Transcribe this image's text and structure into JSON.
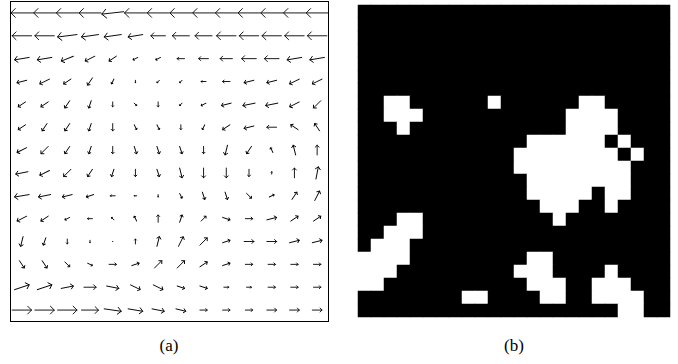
{
  "chart_data": [
    {
      "type": "vector",
      "caption": "(a)",
      "tick_labels": false,
      "color": "#000000",
      "xlim": [
        0,
        14
      ],
      "ylim": [
        14,
        0
      ],
      "x": [
        0.5,
        1.5,
        2.5,
        3.5,
        4.5,
        5.5,
        6.5,
        7.5,
        8.5,
        9.5,
        10.5,
        11.5,
        12.5,
        13.5
      ],
      "y": [
        0.5,
        1.5,
        2.5,
        3.5,
        4.5,
        5.5,
        6.5,
        7.5,
        8.5,
        9.5,
        10.5,
        11.5,
        12.5,
        13.5
      ],
      "u": [
        [
          -9,
          -9,
          -9,
          -9,
          -9,
          -9,
          -9,
          -9,
          -9,
          -9,
          -9,
          -9,
          -9,
          -9
        ],
        [
          -8,
          -8,
          -8,
          -7,
          -7,
          -6,
          -6,
          -7,
          -7,
          -8,
          -8,
          -8,
          -8,
          -8
        ],
        [
          -6,
          -6,
          -5,
          -4,
          -3,
          -2,
          -2,
          -3,
          -4,
          -5,
          -6,
          -6,
          -6,
          -6
        ],
        [
          -4,
          -4,
          -3,
          -2,
          -1,
          0,
          -1,
          -1,
          -2,
          -3,
          -4,
          -4,
          -4,
          -4
        ],
        [
          -3,
          -3,
          -2,
          -1,
          0,
          1,
          0,
          -1,
          -2,
          -4,
          -5,
          -5,
          -4,
          -3
        ],
        [
          -3,
          -2,
          -2,
          -1,
          0,
          1,
          1,
          0,
          -1,
          -3,
          -4,
          -4,
          -3,
          -2
        ],
        [
          -4,
          -3,
          -2,
          -1,
          0,
          1,
          1,
          1,
          0,
          -1,
          -2,
          -1,
          -1,
          0
        ],
        [
          -5,
          -4,
          -3,
          -2,
          -1,
          0,
          1,
          1,
          0,
          0,
          0,
          0,
          0,
          1
        ],
        [
          -6,
          -5,
          -4,
          -3,
          -2,
          -1,
          0,
          1,
          1,
          1,
          2,
          2,
          2,
          2
        ],
        [
          -4,
          -3,
          -2,
          -2,
          -1,
          -1,
          0,
          1,
          2,
          3,
          3,
          4,
          3,
          3
        ],
        [
          -1,
          -1,
          0,
          0,
          0,
          0,
          1,
          2,
          3,
          3,
          4,
          4,
          4,
          4
        ],
        [
          2,
          2,
          2,
          2,
          3,
          3,
          3,
          3,
          3,
          3,
          3,
          3,
          3,
          3
        ],
        [
          6,
          6,
          5,
          5,
          5,
          4,
          4,
          3,
          3,
          2,
          2,
          3,
          3,
          3
        ],
        [
          8,
          8,
          8,
          7,
          7,
          6,
          5,
          4,
          3,
          3,
          3,
          4,
          4,
          4
        ]
      ],
      "v": [
        [
          0,
          0,
          0,
          0,
          1,
          0,
          0,
          0,
          0,
          0,
          0,
          0,
          0,
          0
        ],
        [
          0,
          0,
          1,
          1,
          1,
          1,
          0,
          0,
          0,
          0,
          0,
          0,
          0,
          0
        ],
        [
          1,
          1,
          2,
          2,
          2,
          1,
          1,
          0,
          0,
          0,
          0,
          0,
          1,
          1
        ],
        [
          1,
          2,
          2,
          3,
          2,
          1,
          1,
          1,
          0,
          0,
          1,
          1,
          2,
          2
        ],
        [
          2,
          2,
          3,
          3,
          2,
          1,
          2,
          1,
          1,
          1,
          1,
          1,
          2,
          3
        ],
        [
          2,
          3,
          3,
          3,
          3,
          2,
          2,
          2,
          2,
          2,
          1,
          0,
          -2,
          -3
        ],
        [
          2,
          3,
          3,
          3,
          3,
          3,
          3,
          3,
          3,
          4,
          3,
          -2,
          -4,
          -4
        ],
        [
          1,
          2,
          3,
          3,
          3,
          3,
          3,
          4,
          4,
          4,
          3,
          -1,
          -4,
          -5
        ],
        [
          1,
          1,
          1,
          1,
          0,
          0,
          1,
          2,
          3,
          3,
          2,
          -1,
          -3,
          -4
        ],
        [
          2,
          2,
          1,
          0,
          -1,
          -2,
          -3,
          -3,
          -2,
          1,
          0,
          -1,
          -2,
          -2
        ],
        [
          4,
          3,
          2,
          1,
          0,
          -2,
          -4,
          -4,
          -3,
          -1,
          0,
          0,
          -1,
          -1
        ],
        [
          3,
          3,
          2,
          1,
          0,
          -1,
          -3,
          -3,
          -2,
          -1,
          0,
          0,
          0,
          0
        ],
        [
          -2,
          -2,
          -1,
          0,
          1,
          2,
          2,
          1,
          1,
          0,
          0,
          0,
          0,
          0
        ],
        [
          0,
          0,
          0,
          0,
          1,
          1,
          1,
          1,
          0,
          0,
          0,
          0,
          0,
          0
        ]
      ]
    },
    {
      "type": "heatmap",
      "caption": "(b)",
      "tick_labels": false,
      "colors": [
        "#000000",
        "#ffffff"
      ],
      "cells": [
        [
          0,
          0,
          0,
          0,
          0,
          0,
          0,
          0,
          0,
          0,
          0,
          0,
          0,
          0,
          0,
          0,
          0,
          0,
          0,
          0,
          0,
          0,
          0,
          0
        ],
        [
          0,
          0,
          0,
          0,
          0,
          0,
          0,
          0,
          0,
          0,
          0,
          0,
          0,
          0,
          0,
          0,
          0,
          0,
          0,
          0,
          0,
          0,
          0,
          0
        ],
        [
          0,
          0,
          0,
          0,
          0,
          0,
          0,
          0,
          0,
          0,
          0,
          0,
          0,
          0,
          0,
          0,
          0,
          0,
          0,
          0,
          0,
          0,
          0,
          0
        ],
        [
          0,
          0,
          0,
          0,
          0,
          0,
          0,
          0,
          0,
          0,
          0,
          0,
          0,
          0,
          0,
          0,
          0,
          0,
          0,
          0,
          0,
          0,
          0,
          0
        ],
        [
          0,
          0,
          0,
          0,
          0,
          0,
          0,
          0,
          0,
          0,
          0,
          0,
          0,
          0,
          0,
          0,
          0,
          0,
          0,
          0,
          0,
          0,
          0,
          0
        ],
        [
          0,
          0,
          0,
          0,
          0,
          0,
          0,
          0,
          0,
          0,
          0,
          0,
          0,
          0,
          0,
          0,
          0,
          0,
          0,
          0,
          0,
          0,
          0,
          0
        ],
        [
          0,
          0,
          0,
          0,
          0,
          0,
          0,
          0,
          0,
          0,
          0,
          0,
          0,
          0,
          0,
          0,
          0,
          0,
          0,
          0,
          0,
          0,
          0,
          0
        ],
        [
          0,
          0,
          1,
          1,
          0,
          0,
          0,
          0,
          0,
          0,
          1,
          0,
          0,
          0,
          0,
          0,
          0,
          1,
          1,
          0,
          0,
          0,
          0,
          0
        ],
        [
          0,
          0,
          1,
          1,
          1,
          0,
          0,
          0,
          0,
          0,
          0,
          0,
          0,
          0,
          0,
          0,
          1,
          1,
          1,
          1,
          0,
          0,
          0,
          0
        ],
        [
          0,
          0,
          0,
          1,
          0,
          0,
          0,
          0,
          0,
          0,
          0,
          0,
          0,
          0,
          0,
          0,
          1,
          1,
          1,
          1,
          0,
          0,
          0,
          0
        ],
        [
          0,
          0,
          0,
          0,
          0,
          0,
          0,
          0,
          0,
          0,
          0,
          0,
          0,
          1,
          1,
          1,
          1,
          1,
          1,
          0,
          1,
          0,
          0,
          0
        ],
        [
          0,
          0,
          0,
          0,
          0,
          0,
          0,
          0,
          0,
          0,
          0,
          0,
          1,
          1,
          1,
          1,
          1,
          1,
          1,
          1,
          0,
          1,
          0,
          0
        ],
        [
          0,
          0,
          0,
          0,
          0,
          0,
          0,
          0,
          0,
          0,
          0,
          0,
          1,
          1,
          1,
          1,
          1,
          1,
          1,
          1,
          1,
          0,
          0,
          0
        ],
        [
          0,
          0,
          0,
          0,
          0,
          0,
          0,
          0,
          0,
          0,
          0,
          0,
          0,
          1,
          1,
          1,
          1,
          1,
          1,
          1,
          1,
          0,
          0,
          0
        ],
        [
          0,
          0,
          0,
          0,
          0,
          0,
          0,
          0,
          0,
          0,
          0,
          0,
          0,
          1,
          1,
          1,
          1,
          1,
          0,
          1,
          1,
          0,
          0,
          0
        ],
        [
          0,
          0,
          0,
          0,
          0,
          0,
          0,
          0,
          0,
          0,
          0,
          0,
          0,
          0,
          1,
          1,
          1,
          0,
          0,
          1,
          0,
          0,
          0,
          0
        ],
        [
          0,
          0,
          0,
          1,
          1,
          0,
          0,
          0,
          0,
          0,
          0,
          0,
          0,
          0,
          0,
          1,
          0,
          0,
          0,
          0,
          0,
          0,
          0,
          0
        ],
        [
          0,
          0,
          1,
          1,
          1,
          0,
          0,
          0,
          0,
          0,
          0,
          0,
          0,
          0,
          0,
          0,
          0,
          0,
          0,
          0,
          0,
          0,
          0,
          0
        ],
        [
          0,
          1,
          1,
          1,
          0,
          0,
          0,
          0,
          0,
          0,
          0,
          0,
          0,
          0,
          0,
          0,
          0,
          0,
          0,
          0,
          0,
          0,
          0,
          0
        ],
        [
          1,
          1,
          1,
          1,
          0,
          0,
          0,
          0,
          0,
          0,
          0,
          0,
          0,
          1,
          1,
          0,
          0,
          0,
          0,
          0,
          0,
          0,
          0,
          0
        ],
        [
          1,
          1,
          1,
          0,
          0,
          0,
          0,
          0,
          0,
          0,
          0,
          0,
          1,
          1,
          1,
          0,
          0,
          0,
          0,
          1,
          0,
          0,
          0,
          0
        ],
        [
          1,
          1,
          0,
          0,
          0,
          0,
          0,
          0,
          0,
          0,
          0,
          0,
          0,
          1,
          1,
          1,
          0,
          0,
          1,
          1,
          1,
          0,
          0,
          0
        ],
        [
          0,
          0,
          0,
          0,
          0,
          0,
          0,
          0,
          1,
          1,
          0,
          0,
          0,
          0,
          1,
          1,
          0,
          0,
          1,
          1,
          1,
          1,
          0,
          0
        ],
        [
          0,
          0,
          0,
          0,
          0,
          0,
          0,
          0,
          0,
          0,
          0,
          0,
          0,
          0,
          0,
          0,
          0,
          0,
          0,
          0,
          1,
          1,
          0,
          0
        ]
      ]
    }
  ]
}
